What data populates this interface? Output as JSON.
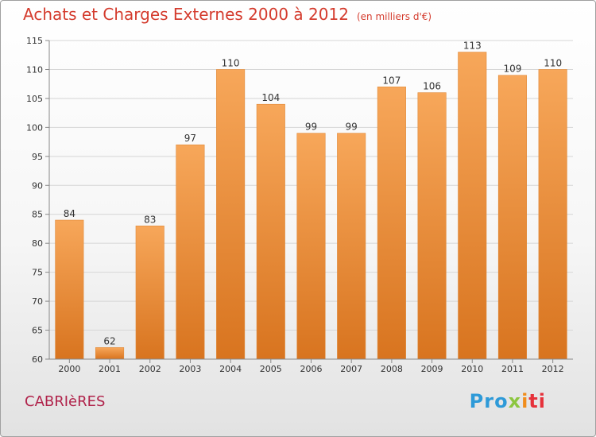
{
  "header": {
    "title": "Achats et Charges Externes 2000 à 2012",
    "unit": "(en milliers d'€)"
  },
  "footer": {
    "commune": "CABRIèRES",
    "brand": {
      "p1": "Pro",
      "p2": "x",
      "p3": "i",
      "p4": "ti"
    }
  },
  "colors": {
    "bar_light": "#f7a75a",
    "bar_dark": "#d8741f",
    "label": "#333333"
  },
  "chart_data": {
    "type": "bar",
    "title": "Achats et Charges Externes 2000 à 2012",
    "categories": [
      "2000",
      "2001",
      "2002",
      "2003",
      "2004",
      "2005",
      "2006",
      "2007",
      "2008",
      "2009",
      "2010",
      "2011",
      "2012"
    ],
    "values": [
      84,
      62,
      83,
      97,
      110,
      104,
      99,
      99,
      107,
      106,
      113,
      109,
      110
    ],
    "ylim": [
      60,
      115
    ],
    "yticks": [
      60,
      65,
      70,
      75,
      80,
      85,
      90,
      95,
      100,
      105,
      110,
      115
    ],
    "grid": true,
    "legend": "none"
  }
}
